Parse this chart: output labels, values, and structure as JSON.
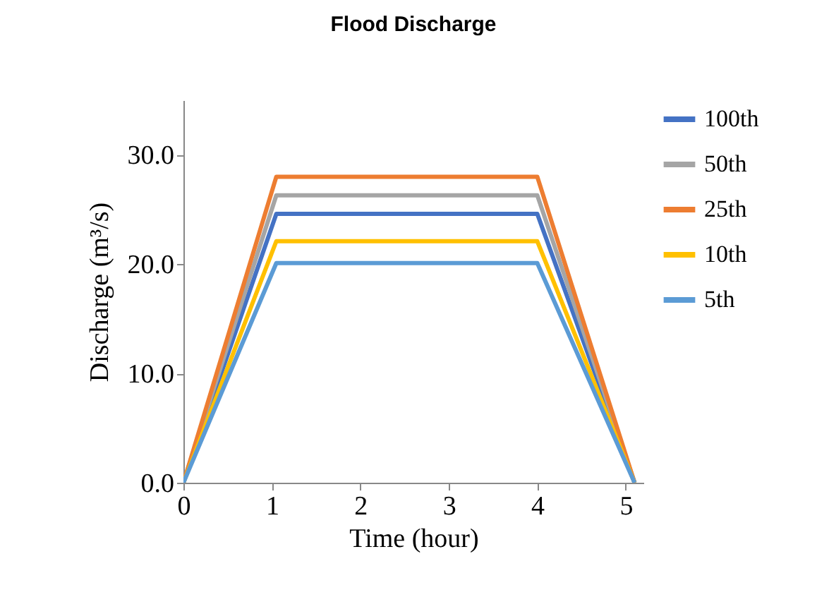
{
  "chart_data": {
    "type": "line",
    "title": "Flood Discharge",
    "xlabel": "Time (hour)",
    "ylabel": "Discharge (m³/s)",
    "x": [
      0,
      1.05,
      4.0,
      5.1
    ],
    "series": [
      {
        "name": "100th",
        "color": "#4472c4",
        "values": [
          0,
          24.6,
          24.6,
          0
        ]
      },
      {
        "name": "50th",
        "color": "#a5a5a5",
        "values": [
          0,
          26.3,
          26.3,
          0
        ]
      },
      {
        "name": "25th",
        "color": "#ed7d31",
        "values": [
          0,
          28.0,
          28.0,
          0
        ]
      },
      {
        "name": "10th",
        "color": "#ffc000",
        "values": [
          0,
          22.1,
          22.1,
          0
        ]
      },
      {
        "name": "5th",
        "color": "#5b9bd5",
        "values": [
          0,
          20.1,
          20.1,
          0
        ]
      }
    ],
    "xlim": [
      0,
      5.2
    ],
    "xticks": [
      0,
      1,
      2,
      3,
      4,
      5
    ],
    "ylim": [
      0,
      35
    ],
    "yticks": [
      {
        "value": 0,
        "label": "0.0"
      },
      {
        "value": 10,
        "label": "10.0"
      },
      {
        "value": 20,
        "label": "20.0"
      },
      {
        "value": 30,
        "label": "30.0"
      }
    ],
    "grid": false,
    "legend": "right",
    "marker": "none",
    "line_style": "solid"
  }
}
